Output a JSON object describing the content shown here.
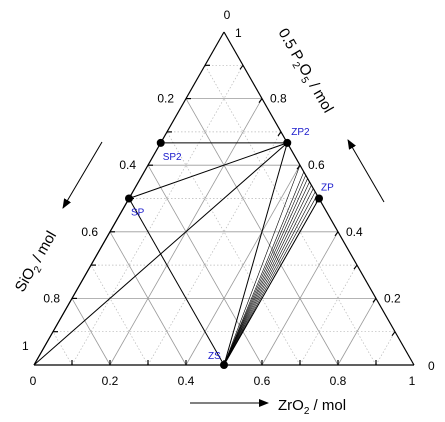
{
  "diagram": {
    "vertex_labels": {
      "top_zero": "0",
      "top_one": "1",
      "left_one": "1",
      "left_zero": "0",
      "right_one": "1",
      "right_zero": "0"
    },
    "left_ticks": [
      "0.2",
      "0.4",
      "0.6",
      "0.8"
    ],
    "right_ticks": [
      "0.8",
      "0.6",
      "0.4",
      "0.2"
    ],
    "bottom_ticks": [
      "0.2",
      "0.4",
      "0.6",
      "0.8"
    ],
    "axes": {
      "right": {
        "pre": "0.5 P",
        "sub1": "2",
        "mid": "O",
        "sub2": "5",
        "post": " / mol"
      },
      "left": {
        "pre": "SiO",
        "sub": "2",
        "post": " / mol"
      },
      "bottom": {
        "pre": "ZrO",
        "sub": "2",
        "post": " / mol"
      }
    },
    "points": [
      {
        "id": "ZP2",
        "label": "ZP2",
        "zr": 0.333,
        "p": 0.667
      },
      {
        "id": "SP2",
        "label": "SP2",
        "zr": 0.0,
        "p": 0.667
      },
      {
        "id": "SP",
        "label": "SP",
        "zr": 0.0,
        "p": 0.5
      },
      {
        "id": "ZP",
        "label": "ZP",
        "zr": 0.5,
        "p": 0.5
      },
      {
        "id": "ZS",
        "label": "ZS",
        "zr": 0.5,
        "p": 0.0
      }
    ],
    "tie_lines": [
      [
        "ZP2",
        "SP2"
      ],
      [
        "ZP2",
        "SP"
      ],
      [
        "ZP2",
        "ZS"
      ],
      [
        "SP",
        "ZS"
      ],
      [
        "ZP",
        "ZS"
      ],
      [
        "ZS",
        "SiO2"
      ],
      [
        "ZP2",
        "SiO2"
      ],
      [
        "SP",
        "SiO2"
      ]
    ],
    "fan_p_values": [
      0.5,
      0.51,
      0.52,
      0.53,
      0.54,
      0.55,
      0.56,
      0.57,
      0.58,
      0.6
    ]
  }
}
